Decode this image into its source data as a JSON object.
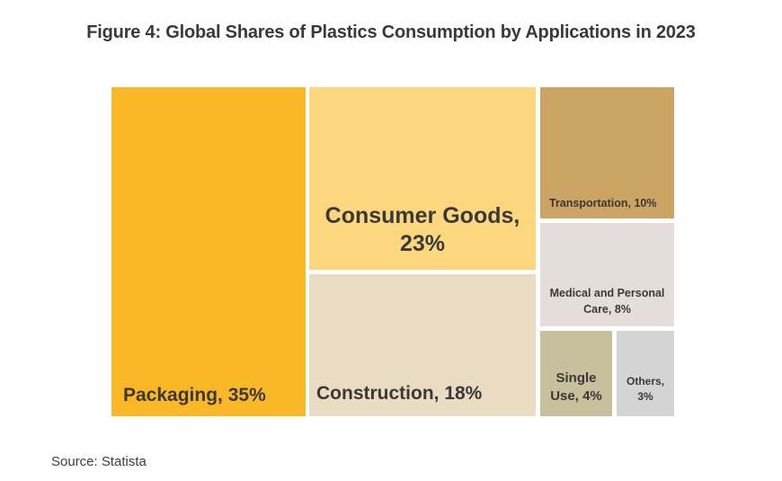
{
  "figure": {
    "title": "Figure 4: Global Shares of Plastics Consumption by Applications in 2023",
    "source_note": "Source: Statista"
  },
  "colors": {
    "background": "#FFFFFF",
    "label_text": "#3B3838",
    "source_text": "#3F3F3F"
  },
  "chart_data": {
    "type": "treemap",
    "title": "Figure 4: Global Shares of Plastics Consumption by Applications in 2023",
    "value_unit": "%",
    "source": "Source: Statista",
    "legend": "none",
    "items": [
      {
        "category": "Packaging",
        "value": 35,
        "label": "Packaging, 35%",
        "label_lines": [
          "Packaging, 35%"
        ],
        "color": "#FBB826"
      },
      {
        "category": "Consumer Goods",
        "value": 23,
        "label": "Consumer Goods, 23%",
        "label_lines": [
          "Consumer Goods,",
          "23%"
        ],
        "color": "#FCD77D"
      },
      {
        "category": "Construction",
        "value": 18,
        "label": "Construction, 18%",
        "label_lines": [
          "Construction, 18%"
        ],
        "color": "#E9DCC3"
      },
      {
        "category": "Transportation",
        "value": 10,
        "label": "Transportation, 10%",
        "label_lines": [
          "Transportation, 10%"
        ],
        "color": "#CBA363"
      },
      {
        "category": "Medical and Personal Care",
        "value": 8,
        "label": "Medical and Personal Care, 8%",
        "label_lines": [
          "Medical and Personal",
          "Care, 8%"
        ],
        "color": "#E5DDDA"
      },
      {
        "category": "Single Use",
        "value": 4,
        "label": "Single Use, 4%",
        "label_lines": [
          "Single",
          "Use, 4%"
        ],
        "color": "#C8BF9D"
      },
      {
        "category": "Others",
        "value": 3,
        "label": "Others, 3%",
        "label_lines": [
          "Others,",
          "3%"
        ],
        "color": "#D4D4D4"
      }
    ]
  }
}
